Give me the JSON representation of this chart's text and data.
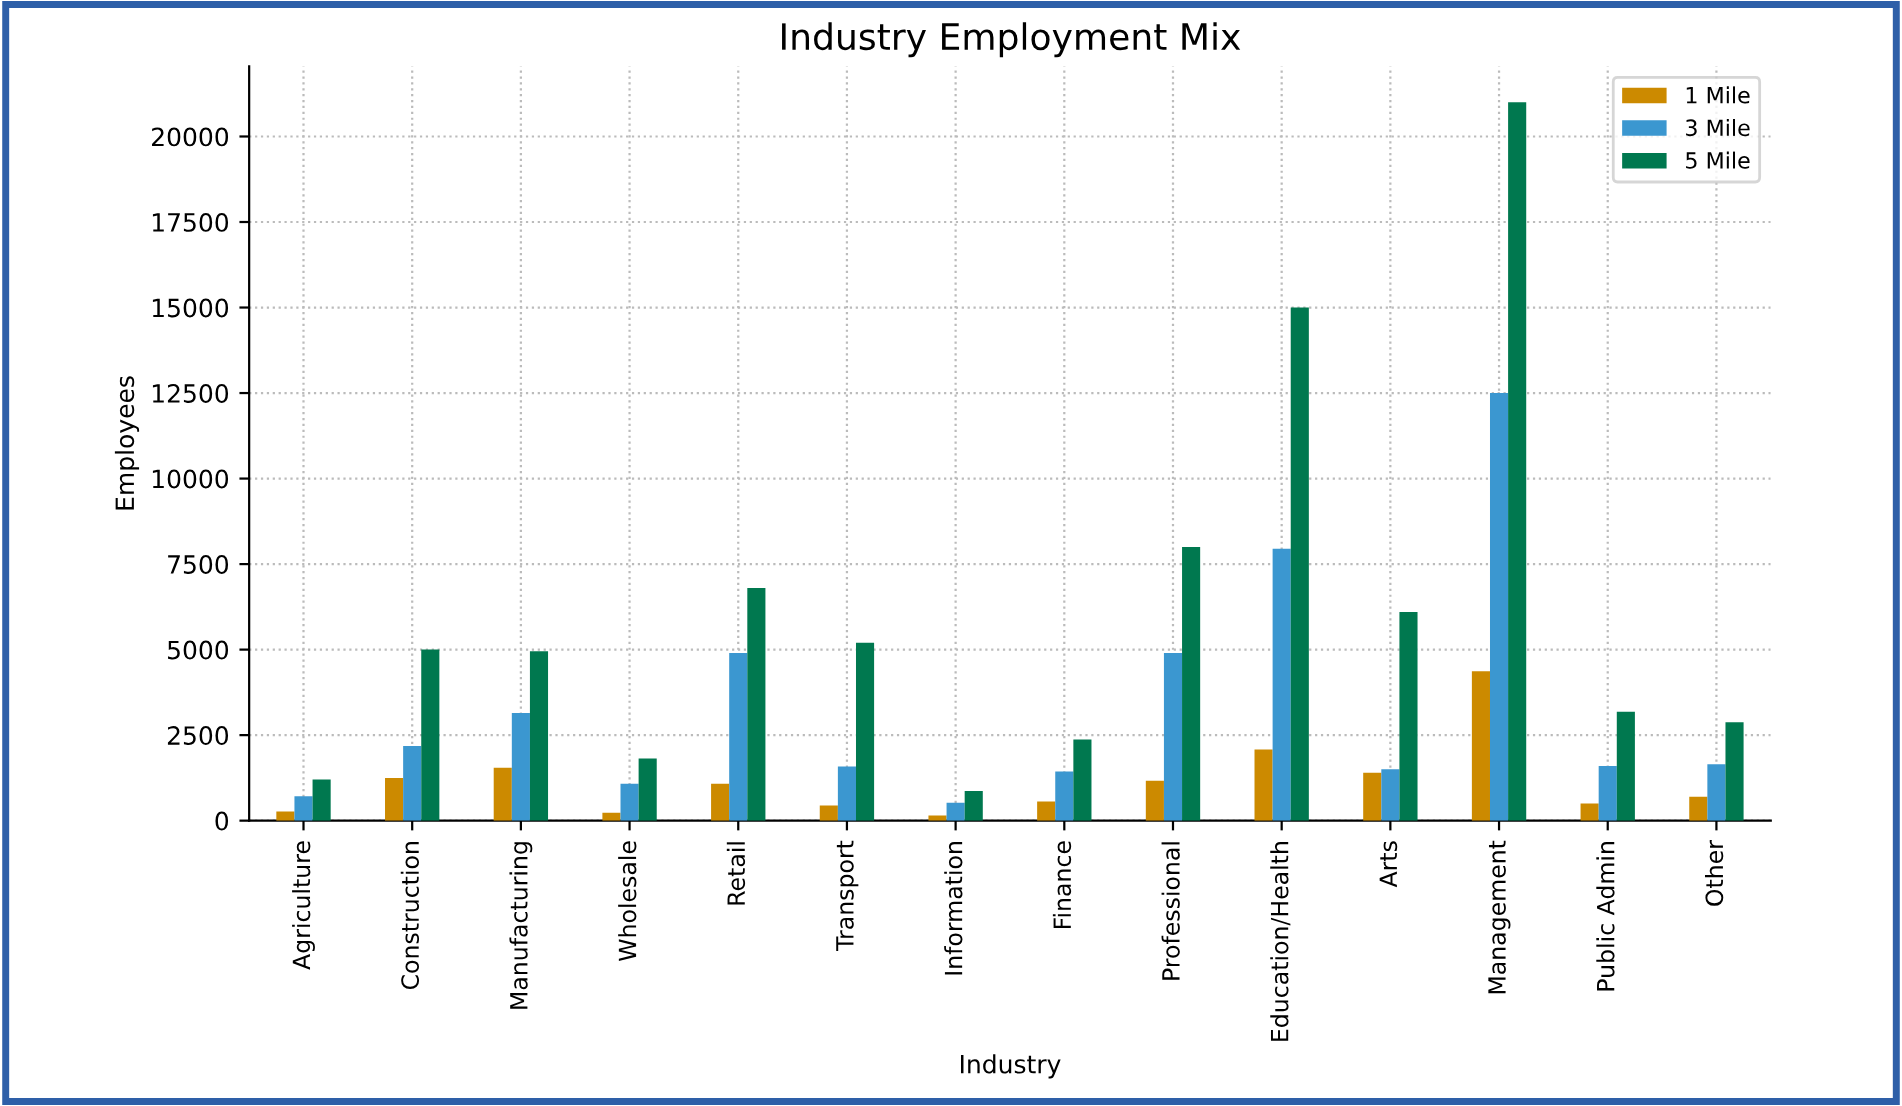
{
  "chart_data": {
    "type": "bar",
    "title": "Industry Employment Mix",
    "xlabel": "Industry",
    "ylabel": "Employees",
    "categories": [
      "Agriculture",
      "Construction",
      "Manufacturing",
      "Wholesale",
      "Retail",
      "Transport",
      "Information",
      "Finance",
      "Professional",
      "Education/Health",
      "Arts",
      "Management",
      "Public Admin",
      "Other"
    ],
    "series": [
      {
        "name": "1 Mile",
        "color": "#cc8a00",
        "values": [
          270,
          1250,
          1550,
          230,
          1080,
          440,
          150,
          560,
          1170,
          2080,
          1400,
          4370,
          500,
          700
        ]
      },
      {
        "name": "3 Mile",
        "color": "#3b97d0",
        "values": [
          710,
          2180,
          3150,
          1080,
          4900,
          1580,
          520,
          1440,
          4900,
          7950,
          1500,
          12500,
          1600,
          1650
        ]
      },
      {
        "name": "5 Mile",
        "color": "#00784f",
        "values": [
          1200,
          5000,
          4950,
          1820,
          6800,
          5200,
          870,
          2370,
          8000,
          15000,
          6100,
          21000,
          3180,
          2880
        ]
      }
    ],
    "ylim": [
      0,
      22050
    ],
    "yticks": [
      0,
      2500,
      5000,
      7500,
      10000,
      12500,
      15000,
      17500,
      20000
    ],
    "grid": true,
    "legend": "top right"
  }
}
